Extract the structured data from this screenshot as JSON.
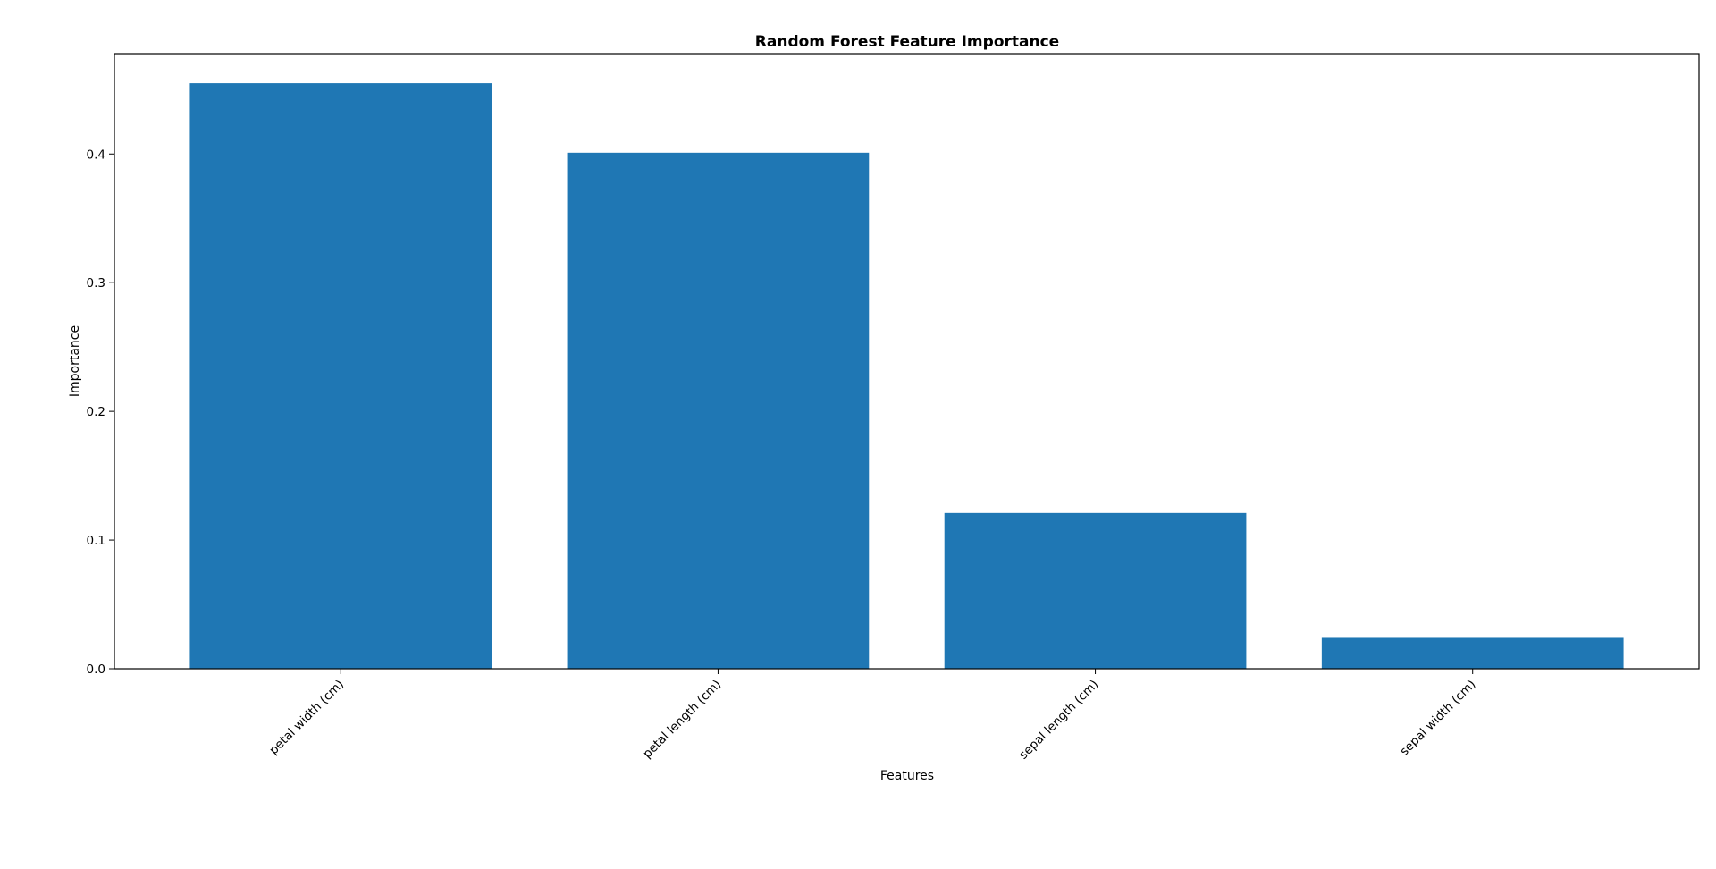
{
  "chart_data": {
    "type": "bar",
    "title": "Random Forest Feature Importance",
    "xlabel": "Features",
    "ylabel": "Importance",
    "categories": [
      "petal width (cm)",
      "petal length (cm)",
      "sepal length (cm)",
      "sepal width (cm)"
    ],
    "values": [
      0.455,
      0.401,
      0.121,
      0.024
    ],
    "ylim": [
      0,
      0.478
    ],
    "yticks": [
      "0.0",
      "0.1",
      "0.2",
      "0.3",
      "0.4"
    ],
    "bar_color": "#1f77b4",
    "grid": false,
    "legend": "none"
  }
}
